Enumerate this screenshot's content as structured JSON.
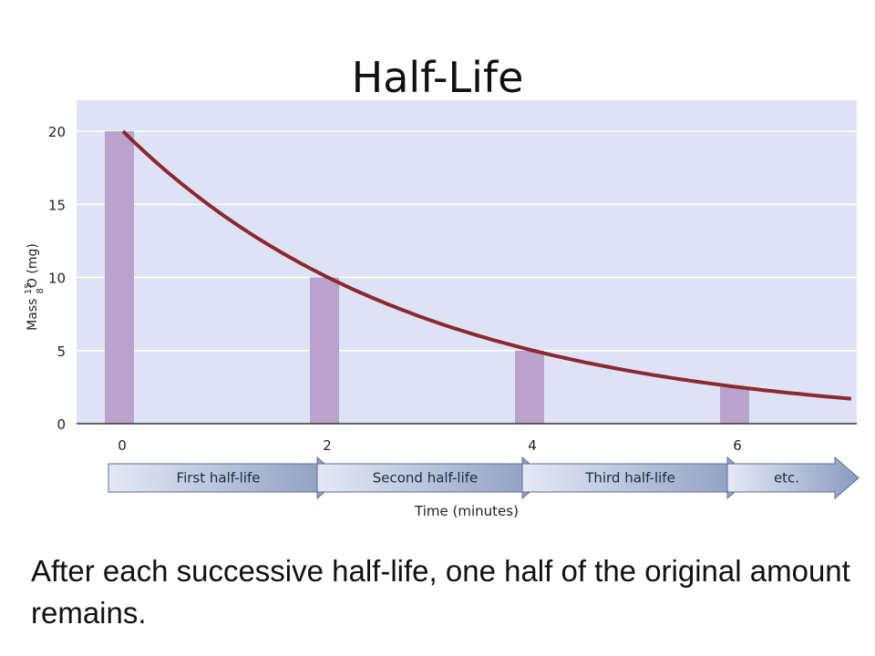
{
  "slide": {
    "title": "Half-Life",
    "caption": "After each successive half-life, one half of the original amount remains."
  },
  "colors": {
    "plot_background": "#dde3f5",
    "figure_background": "#ffffff",
    "bar_fill": "#b9a2cc",
    "curve": "#8b2830",
    "arrow_fill": "#8a9bbf",
    "grid": "#ffffff"
  },
  "chart_data": {
    "type": "bar",
    "title": "",
    "xlabel": "Time (minutes)",
    "ylabel": {
      "prefix": "Mass ",
      "isotope_mass": "15",
      "isotope_atomic": "8",
      "symbol": "O",
      "suffix": " (mg)"
    },
    "x": [
      0,
      2,
      4,
      6
    ],
    "values": [
      20,
      10,
      5,
      2.5
    ],
    "xlim": [
      -0.2,
      7.1
    ],
    "ylim": [
      0,
      22
    ],
    "yticks": [
      0,
      5,
      10,
      15,
      20
    ],
    "xticks": [
      0,
      2,
      4,
      6
    ],
    "grid": true,
    "curve": {
      "type": "exponential-decay",
      "initial": 20,
      "half_life": 2,
      "x_start": 0,
      "x_end": 7.1
    },
    "half_life_arrows": [
      {
        "label": "First half-life",
        "from": -0.2,
        "to": 2
      },
      {
        "label": "Second half-life",
        "from": 2,
        "to": 4
      },
      {
        "label": "Third half-life",
        "from": 4,
        "to": 6
      },
      {
        "label": "etc.",
        "from": 6,
        "to": 7.2
      }
    ]
  }
}
